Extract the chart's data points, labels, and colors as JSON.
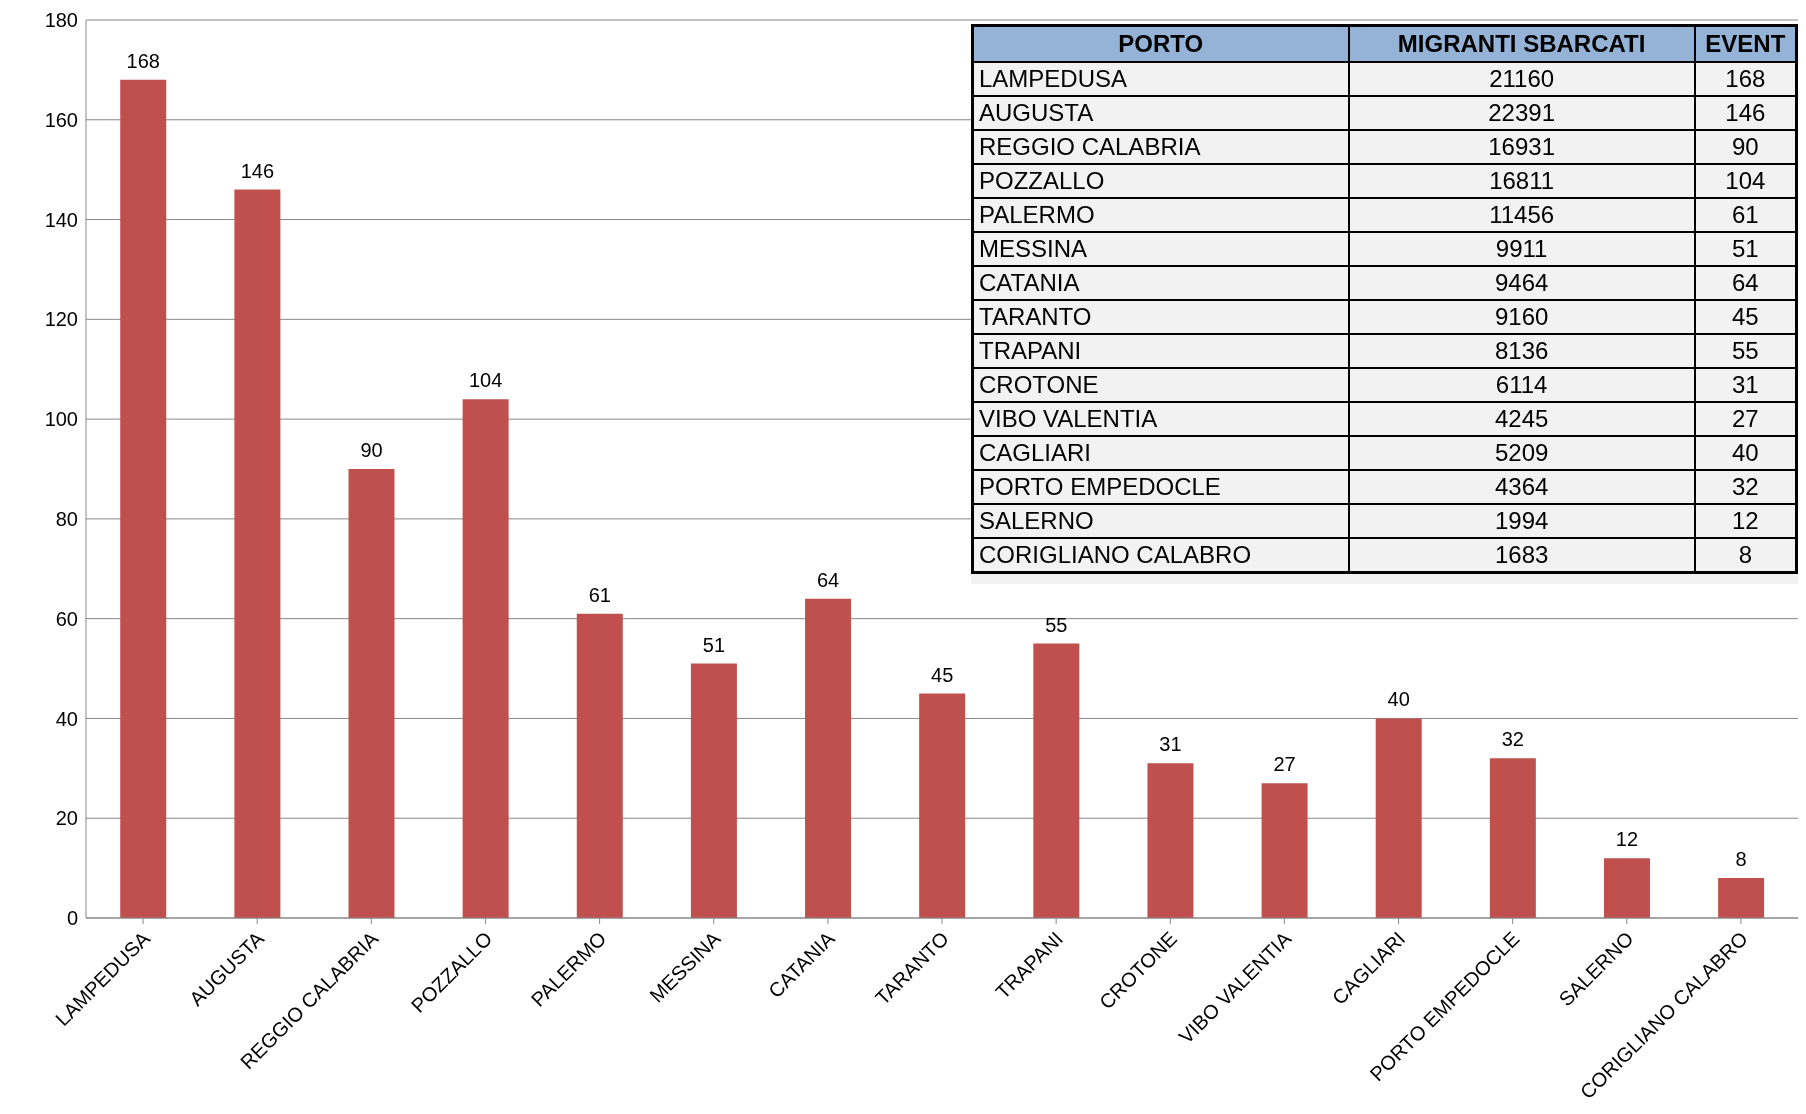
{
  "chart_data": [
    {
      "type": "bar",
      "categories": [
        "LAMPEDUSA",
        "AUGUSTA",
        "REGGIO CALABRIA",
        "POZZALLO",
        "PALERMO",
        "MESSINA",
        "CATANIA",
        "TARANTO",
        "TRAPANI",
        "CROTONE",
        "VIBO VALENTIA",
        "CAGLIARI",
        "PORTO EMPEDOCLE",
        "SALERNO",
        "CORIGLIANO CALABRO"
      ],
      "values": [
        168,
        146,
        90,
        104,
        61,
        51,
        64,
        45,
        55,
        31,
        27,
        40,
        32,
        12,
        8
      ],
      "color": "#c0504d",
      "ylim": [
        0,
        180
      ],
      "yticks": [
        0,
        20,
        40,
        60,
        80,
        100,
        120,
        140,
        160,
        180
      ],
      "grid": "y",
      "data_labels": true
    },
    {
      "type": "other",
      "xlabel": "PORTO",
      "data_labels": true,
      "categories": [
        "LAMPEDUSA",
        "AUGUSTA",
        "REGGIO CALABRIA",
        "POZZALLO",
        "PALERMO",
        "MESSINA",
        "CATANIA",
        "TARANTO",
        "TRAPANI",
        "CROTONE",
        "VIBO VALENTIA",
        "CAGLIARI",
        "PORTO EMPEDOCLE",
        "SALERNO",
        "CORIGLIANO CALABRO"
      ],
      "series": [
        {
          "name": "MIGRANTI SBARCATI",
          "values": [
            21160,
            22391,
            16931,
            16811,
            11456,
            9911,
            9464,
            9160,
            8136,
            6114,
            4245,
            5209,
            4364,
            1994,
            1683
          ]
        },
        {
          "name": "EVENT",
          "values": [
            168,
            146,
            90,
            104,
            61,
            51,
            64,
            45,
            55,
            31,
            27,
            40,
            32,
            12,
            8
          ]
        }
      ]
    }
  ]
}
